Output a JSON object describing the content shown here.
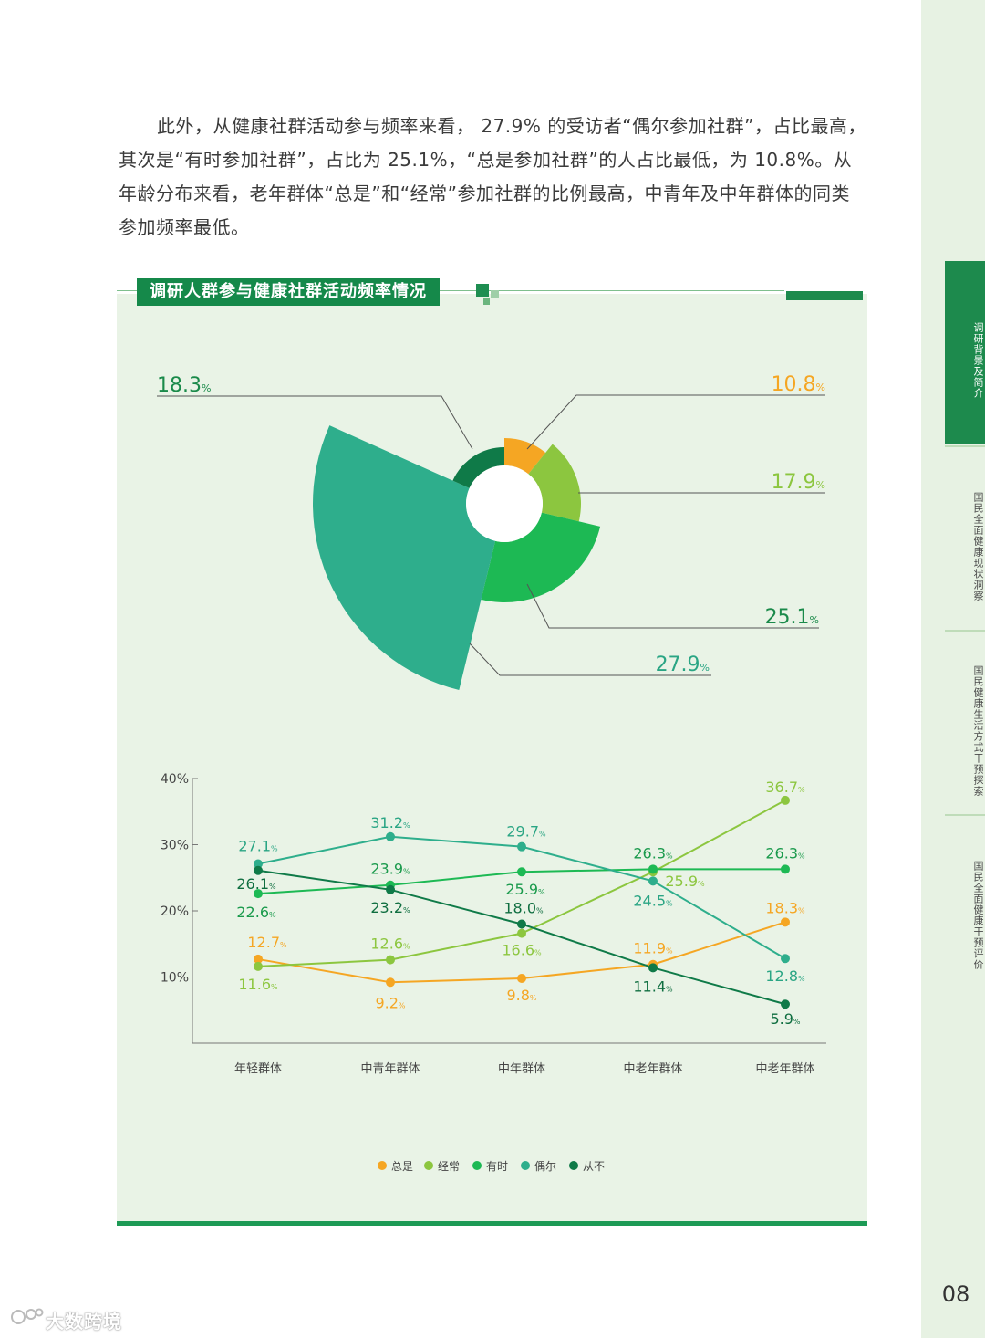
{
  "paragraph": "此外，从健康社群活动参与频率来看， 27.9% 的受访者“偶尔参加社群”，占比最高，其次是“有时参加社群”，占比为 25.1%，“总是参加社群”的人占比最低，为 10.8%。从年龄分布来看，老年群体“总是”和“经常”参加社群的比例最高，中青年及中年群体的同类参加频率最低。",
  "section_title": "调研人群参与健康社群活动频率情况",
  "sidebar": {
    "tabs": [
      "调研背景及简介",
      "国民全面健康现状洞察",
      "国民健康生活方式干预探索",
      "国民全面健康干预评价"
    ]
  },
  "page_number": "08",
  "watermark": "大数跨境",
  "colors": {
    "always": "#f5a623",
    "often": "#8cc63f",
    "sometimes": "#1db954",
    "occasionally": "#2eae8c",
    "never": "#0f7a48"
  },
  "chart_data": [
    {
      "type": "pie",
      "subtype": "rose",
      "categories": [
        "总是",
        "经常",
        "有时",
        "偶尔",
        "从不"
      ],
      "values": [
        10.8,
        17.9,
        25.1,
        27.9,
        18.3
      ],
      "labels": [
        "10.8",
        "17.9",
        "25.1",
        "27.9",
        "18.3"
      ],
      "unit": "%"
    },
    {
      "type": "line",
      "categories": [
        "年轻群体",
        "中青年群体",
        "中年群体",
        "中老年群体",
        "中老年群体"
      ],
      "ylim": [
        0,
        40
      ],
      "yticks": [
        "10%",
        "20%",
        "30%",
        "40%"
      ],
      "ytick_values": [
        10,
        20,
        30,
        40
      ],
      "unit": "%",
      "series": [
        {
          "key": "always",
          "name": "总是",
          "values": [
            12.7,
            9.2,
            9.8,
            11.9,
            18.3
          ]
        },
        {
          "key": "often",
          "name": "经常",
          "values": [
            11.6,
            12.6,
            16.6,
            25.9,
            36.7
          ]
        },
        {
          "key": "sometimes",
          "name": "有时",
          "values": [
            22.6,
            23.9,
            25.9,
            26.3,
            26.3
          ]
        },
        {
          "key": "occasionally",
          "name": "偶尔",
          "values": [
            27.1,
            31.2,
            29.7,
            24.5,
            12.8
          ]
        },
        {
          "key": "never",
          "name": "从不",
          "values": [
            26.1,
            23.2,
            18.0,
            11.4,
            5.9
          ]
        }
      ]
    }
  ]
}
